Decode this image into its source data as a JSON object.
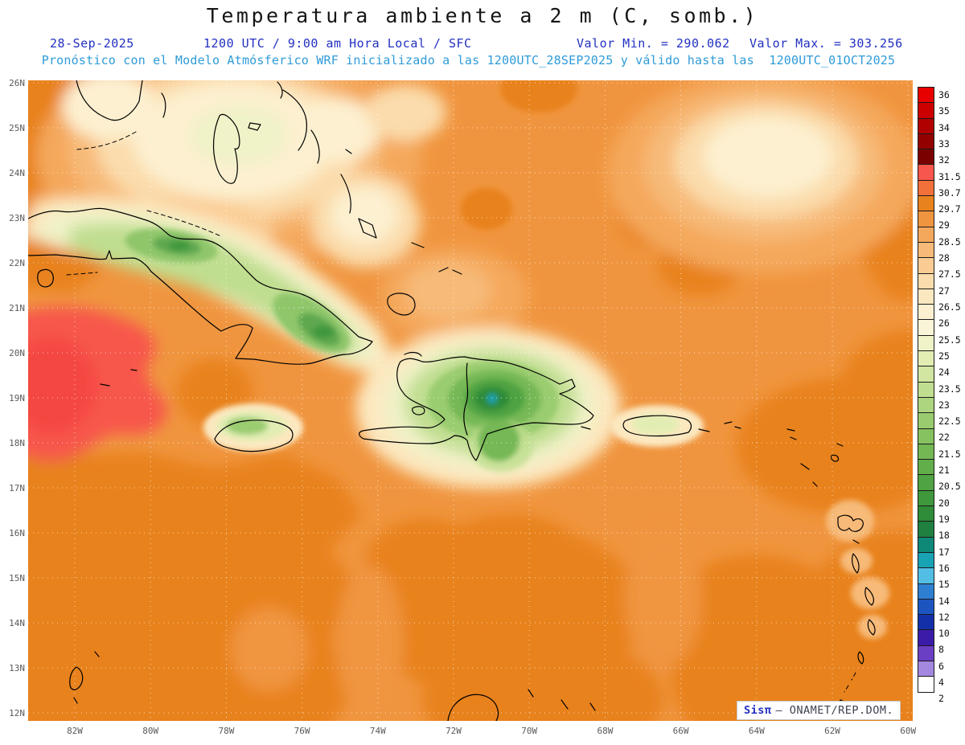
{
  "header": {
    "title": "Temperatura ambiente a 2 m (C, somb.)",
    "date": "28-Sep-2025",
    "time": "1200 UTC / 9:00 am Hora Local / SFC",
    "min": "Valor Min. = 290.062",
    "max": "Valor Max. = 303.256",
    "forecast": "Pronóstico con el Modelo Atmósferico WRF inicializado a las 1200UTC_28SEP2025 y válido hasta las  1200UTC_01OCT2025"
  },
  "axes": {
    "lat": [
      "26N",
      "25N",
      "24N",
      "23N",
      "22N",
      "21N",
      "20N",
      "19N",
      "18N",
      "17N",
      "16N",
      "15N",
      "14N",
      "13N",
      "12N"
    ],
    "lon": [
      "82W",
      "80W",
      "78W",
      "76W",
      "74W",
      "72W",
      "70W",
      "68W",
      "66W",
      "64W",
      "62W",
      "60W"
    ]
  },
  "colorbar": {
    "labels": [
      "36",
      "35",
      "34",
      "33",
      "32",
      "31.5",
      "30.7",
      "29.7",
      "29",
      "28.5",
      "28",
      "27.5",
      "27",
      "26.5",
      "26",
      "25.5",
      "25",
      "24",
      "23.5",
      "23",
      "22.5",
      "22",
      "21.5",
      "21",
      "20.5",
      "20",
      "19",
      "18",
      "17",
      "16",
      "15",
      "14",
      "12",
      "10",
      "8",
      "6",
      "4",
      "2"
    ],
    "colors": [
      "#E80000",
      "#CD0000",
      "#B00000",
      "#930000",
      "#7A0000",
      "#F7564C",
      "#F2703A",
      "#E8821C",
      "#F0953F",
      "#F4A85C",
      "#F7BA78",
      "#FACC94",
      "#FBDCAC",
      "#FCE8C0",
      "#FDF0D0",
      "#FAF5D8",
      "#F0F2C8",
      "#E2EDB4",
      "#D2E6A2",
      "#C0DE90",
      "#ADD57F",
      "#9ACC6F",
      "#87C260",
      "#74B854",
      "#62AE4A",
      "#50A342",
      "#3F983C",
      "#2F8C38",
      "#1F8040",
      "#0F8878",
      "#19A2B4",
      "#52BEE6",
      "#2E7FD2",
      "#1C55C0",
      "#1430A8",
      "#3A1CA8",
      "#6B3FC4",
      "#A488E0",
      "#FFFFFF"
    ]
  },
  "watermark": {
    "model": "Sisπ",
    "org": "– ONAMET/REP.DOM."
  },
  "chart_data": {
    "type": "heatmap",
    "title": "Temperatura ambiente a 2 m (C, somb.)",
    "variable": "2 m ambient temperature",
    "units": "C",
    "model": "WRF (SisPI) - ONAMET/REP.DOM.",
    "run": "1200 UTC / 9:00 am Hora Local / SFC",
    "init": "1200UTC_28SEP2025",
    "valid_until": "1200UTC_01OCT2025",
    "valor_min": 290.062,
    "valor_max": 303.256,
    "lat_ticks": [
      "12N",
      "13N",
      "14N",
      "15N",
      "16N",
      "17N",
      "18N",
      "19N",
      "20N",
      "21N",
      "22N",
      "23N",
      "24N",
      "25N",
      "26N"
    ],
    "lon_ticks": [
      "82W",
      "80W",
      "78W",
      "76W",
      "74W",
      "72W",
      "70W",
      "68W",
      "66W",
      "64W",
      "62W",
      "60W"
    ],
    "scale_levels": [
      2,
      4,
      6,
      8,
      10,
      12,
      14,
      15,
      16,
      17,
      18,
      19,
      20,
      20.5,
      21,
      21.5,
      22,
      22.5,
      23,
      23.5,
      24,
      25,
      25.5,
      26,
      26.5,
      27,
      27.5,
      28,
      28.5,
      29,
      29.7,
      30.7,
      31.5,
      32,
      33,
      34,
      35,
      36
    ],
    "legend_position": "right",
    "grid": "dotted 1-degree graticule",
    "approx_field": [
      {
        "region": "NW Caribbean sea west of Jamaica (~18-21N, 81-83W)",
        "approx_value_c": 31.5
      },
      {
        "region": "open Caribbean and Atlantic (background)",
        "approx_value_c": 29.5
      },
      {
        "region": "southern Caribbean / bottom half dark patches",
        "approx_value_c": 30.5
      },
      {
        "region": "Bahamas banks and north of Cuba",
        "approx_value_c": 27
      },
      {
        "region": "Atlantic cool pocket near 24-25N, 63-65W",
        "approx_value_c": 26.5
      },
      {
        "region": "interior Cuba",
        "approx_value_c": 21
      },
      {
        "region": "interior Jamaica",
        "approx_value_c": 24
      },
      {
        "region": "interior Hispaniola (Cordillera Central core)",
        "approx_value_c": 17
      },
      {
        "region": "interior Puerto Rico",
        "approx_value_c": 25
      }
    ]
  }
}
